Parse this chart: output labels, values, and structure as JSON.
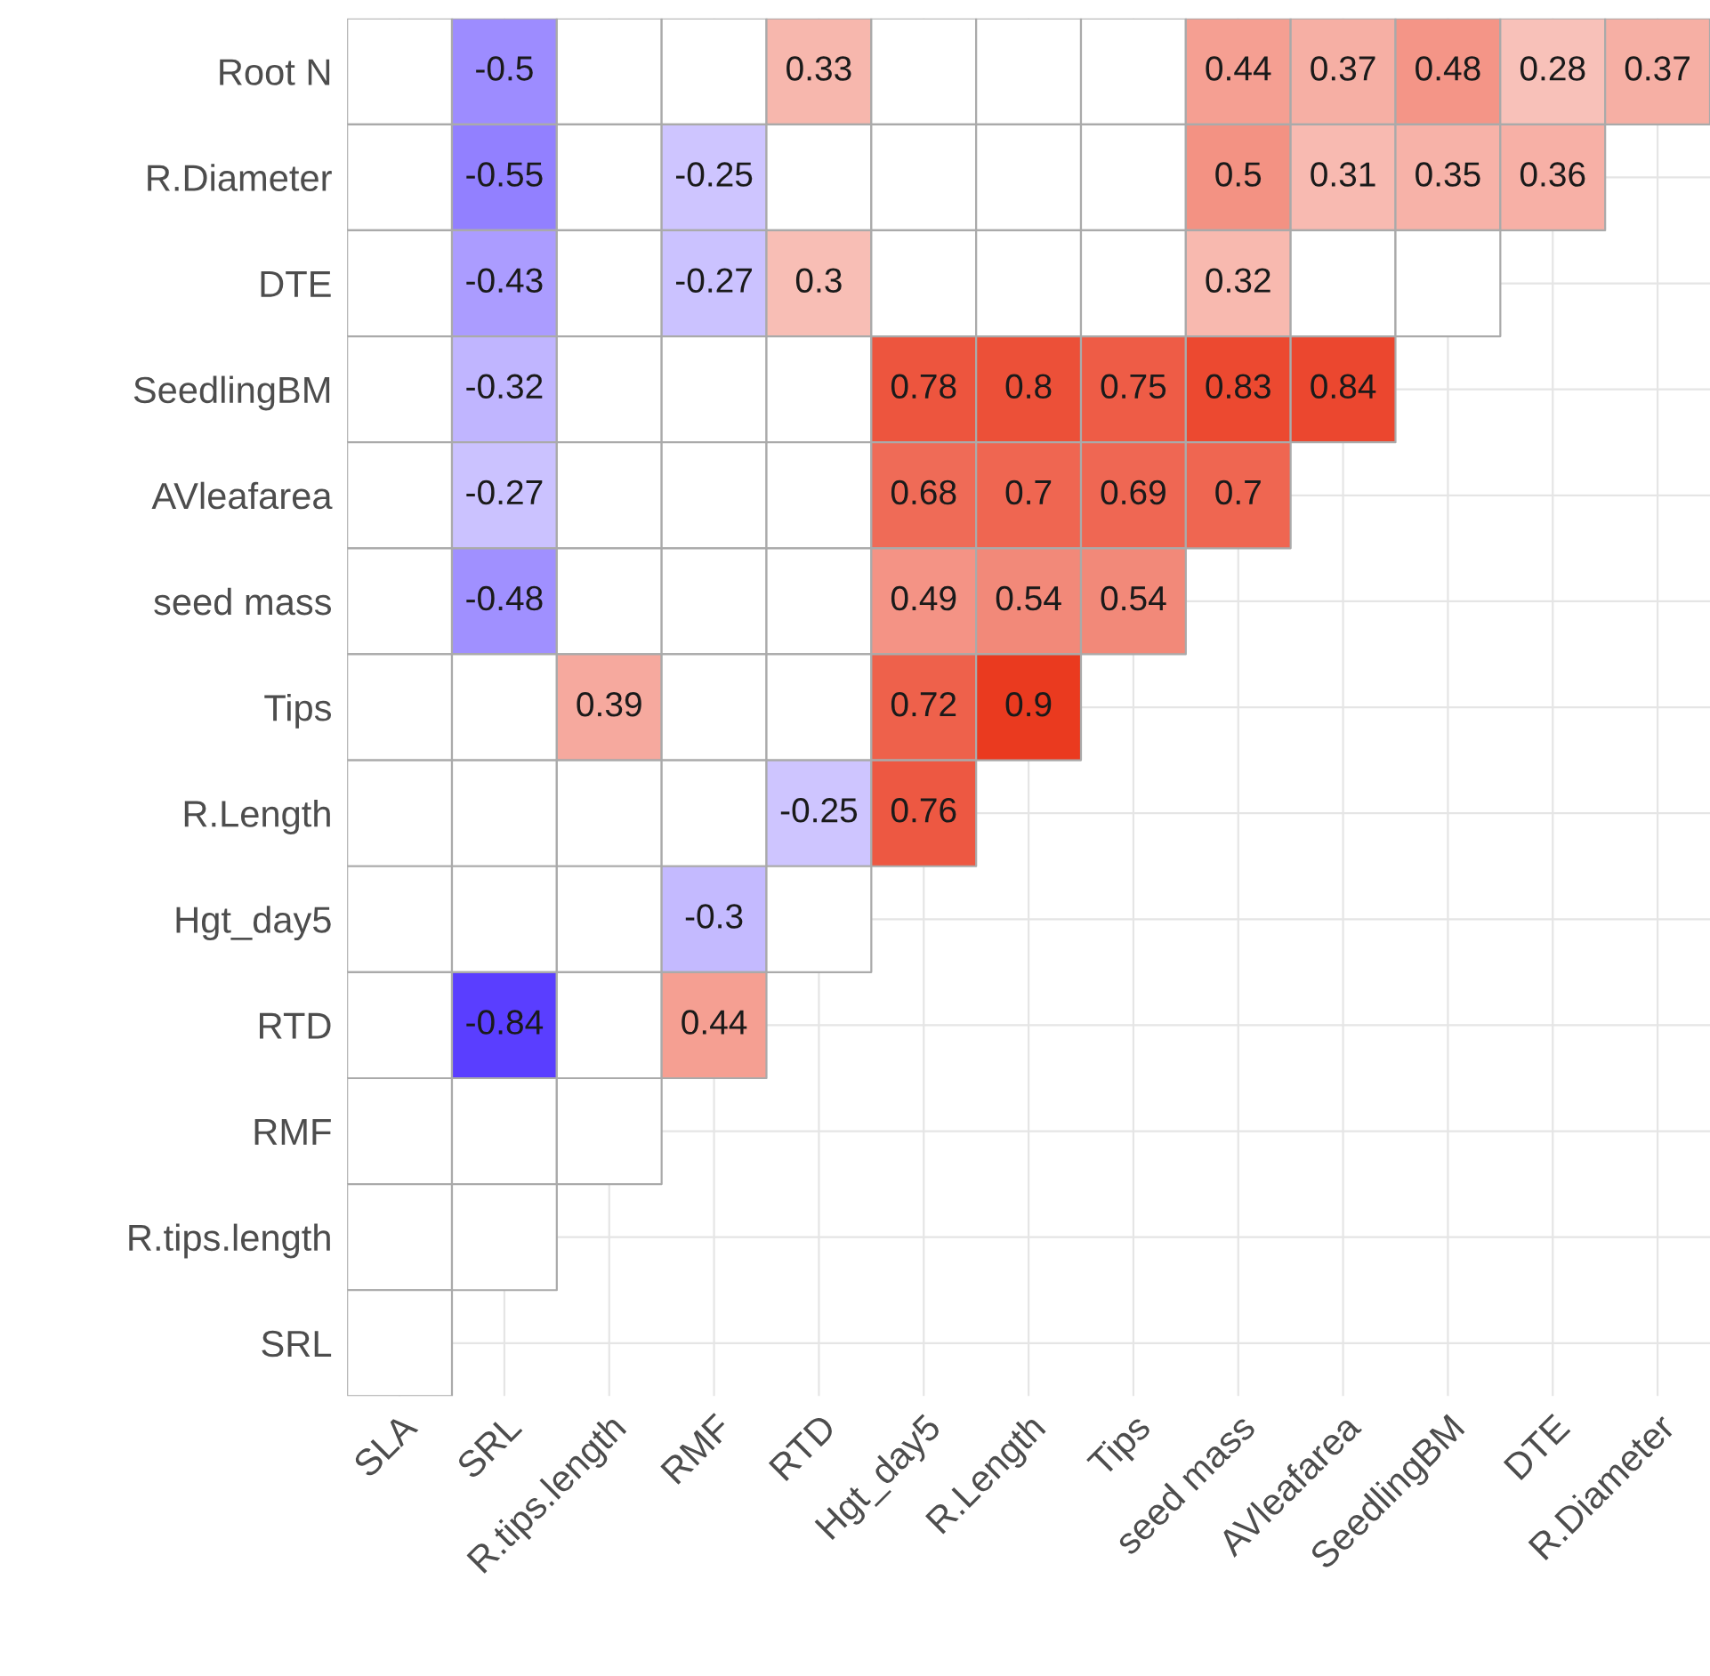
{
  "chart_data": {
    "type": "heatmap",
    "categories": [
      "SLA",
      "SRL",
      "R.tips.length",
      "RMF",
      "RTD",
      "Hgt_day5",
      "R.Length",
      "Tips",
      "seed mass",
      "AVleafarea",
      "SeedlingBM",
      "DTE",
      "R.Diameter"
    ],
    "y_categories": [
      "Root N",
      "R.Diameter",
      "DTE",
      "SeedlingBM",
      "AVleafarea",
      "seed mass",
      "Tips",
      "R.Length",
      "Hgt_day5",
      "RTD",
      "RMF",
      "R.tips.length",
      "SRL"
    ],
    "cells": [
      [
        null,
        -0.5,
        null,
        null,
        0.33,
        null,
        null,
        null,
        0.44,
        0.37,
        0.48,
        0.28,
        0.37
      ],
      [
        null,
        -0.55,
        null,
        -0.25,
        null,
        null,
        null,
        null,
        0.5,
        0.31,
        0.35,
        0.36,
        null
      ],
      [
        null,
        -0.43,
        null,
        -0.27,
        0.3,
        null,
        null,
        null,
        0.32,
        null,
        null,
        null,
        null
      ],
      [
        null,
        -0.32,
        null,
        null,
        null,
        0.78,
        0.8,
        0.75,
        0.83,
        0.84,
        null,
        null,
        null
      ],
      [
        null,
        -0.27,
        null,
        null,
        null,
        0.68,
        0.7,
        0.69,
        0.7,
        null,
        null,
        null,
        null
      ],
      [
        null,
        -0.48,
        null,
        null,
        null,
        0.49,
        0.54,
        0.54,
        null,
        null,
        null,
        null,
        null
      ],
      [
        null,
        null,
        0.39,
        null,
        null,
        0.72,
        0.9,
        null,
        null,
        null,
        null,
        null,
        null
      ],
      [
        null,
        null,
        null,
        null,
        -0.25,
        0.76,
        null,
        null,
        null,
        null,
        null,
        null,
        null
      ],
      [
        null,
        null,
        null,
        -0.3,
        null,
        null,
        null,
        null,
        null,
        null,
        null,
        null,
        null
      ],
      [
        null,
        -0.84,
        null,
        0.44,
        null,
        null,
        null,
        null,
        null,
        null,
        null,
        null,
        null
      ],
      [
        null,
        null,
        null,
        null,
        null,
        null,
        null,
        null,
        null,
        null,
        null,
        null,
        null
      ],
      [
        null,
        null,
        null,
        null,
        null,
        null,
        null,
        null,
        null,
        null,
        null,
        null,
        null
      ],
      [
        null,
        null,
        null,
        null,
        null,
        null,
        null,
        null,
        null,
        null,
        null,
        null,
        null
      ]
    ],
    "data_labels": true,
    "grid": true
  }
}
